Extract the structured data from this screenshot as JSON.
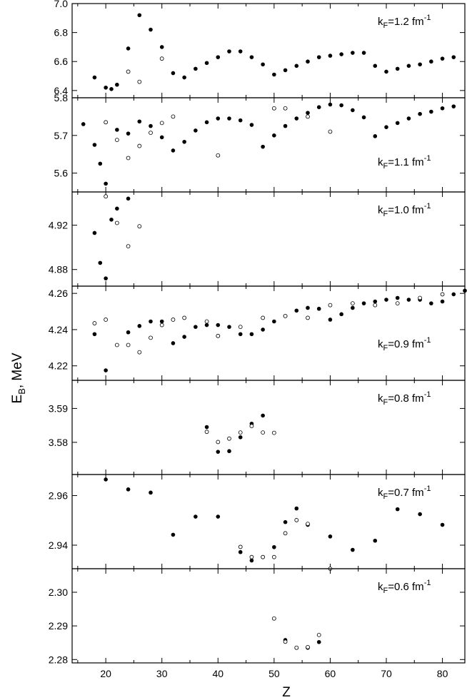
{
  "figure": {
    "ylabel": "E_B, MeV",
    "ylabel_main": "E",
    "ylabel_sub": "B",
    "ylabel_rest": ", MeV",
    "xlabel": "Z",
    "xlim": [
      14,
      84
    ],
    "xticks": [
      20,
      30,
      40,
      50,
      60,
      70,
      80
    ]
  },
  "chart_data": [
    {
      "type": "scatter",
      "label": "k_F=1.2 fm^-1",
      "label_parts": {
        "k": "k",
        "sub": "F",
        "mid": "=1.2 fm",
        "sup": "-1"
      },
      "xlabel": "Z",
      "ylabel": "E_B, MeV",
      "ylim": [
        6.35,
        7.0
      ],
      "yticks": [
        6.4,
        6.6,
        6.8,
        7.0
      ],
      "yticklabels": [
        "6.4",
        "6.6",
        "6.8",
        "7.0"
      ],
      "series": [
        {
          "marker": "filled",
          "x": [
            18,
            20,
            21,
            22,
            24,
            26,
            28,
            30,
            32,
            34,
            36,
            38,
            40,
            42,
            44,
            46,
            48,
            50,
            52,
            54,
            56,
            58,
            60,
            62,
            64,
            66,
            68,
            70,
            72,
            74,
            76,
            78,
            80,
            82
          ],
          "y": [
            6.49,
            6.42,
            6.41,
            6.44,
            6.69,
            6.92,
            6.82,
            6.7,
            6.52,
            6.49,
            6.55,
            6.59,
            6.63,
            6.67,
            6.67,
            6.63,
            6.58,
            6.51,
            6.54,
            6.57,
            6.6,
            6.63,
            6.64,
            6.65,
            6.66,
            6.66,
            6.57,
            6.53,
            6.55,
            6.57,
            6.58,
            6.6,
            6.62,
            6.63
          ]
        },
        {
          "marker": "open",
          "x": [
            24,
            26,
            30
          ],
          "y": [
            6.53,
            6.46,
            6.62
          ]
        }
      ]
    },
    {
      "type": "scatter",
      "label": "k_F=1.1 fm^-1",
      "label_parts": {
        "k": "k",
        "sub": "F",
        "mid": "=1.1 fm",
        "sup": "-1"
      },
      "xlabel": "Z",
      "ylabel": "E_B, MeV",
      "ylim": [
        5.55,
        5.8
      ],
      "yticks": [
        5.6,
        5.7,
        5.8
      ],
      "yticklabels": [
        "5.6",
        "5.7",
        "5.8"
      ],
      "series": [
        {
          "marker": "filled",
          "x": [
            16,
            18,
            19,
            20,
            22,
            24,
            26,
            28,
            30,
            32,
            34,
            36,
            38,
            40,
            42,
            44,
            46,
            48,
            50,
            52,
            54,
            56,
            58,
            60,
            62,
            64,
            66,
            68,
            70,
            72,
            74,
            76,
            78,
            80,
            82
          ],
          "y": [
            5.73,
            5.675,
            5.625,
            5.572,
            5.715,
            5.705,
            5.737,
            5.725,
            5.695,
            5.66,
            5.683,
            5.713,
            5.735,
            5.745,
            5.745,
            5.74,
            5.728,
            5.67,
            5.7,
            5.725,
            5.745,
            5.76,
            5.775,
            5.782,
            5.78,
            5.767,
            5.748,
            5.698,
            5.722,
            5.733,
            5.745,
            5.757,
            5.763,
            5.772,
            5.777
          ]
        },
        {
          "marker": "open",
          "x": [
            20,
            22,
            24,
            26,
            28,
            30,
            32,
            40,
            50,
            52,
            56,
            60
          ],
          "y": [
            5.735,
            5.688,
            5.64,
            5.672,
            5.707,
            5.733,
            5.75,
            5.647,
            5.772,
            5.772,
            5.75,
            5.71
          ]
        }
      ]
    },
    {
      "type": "scatter",
      "label": "k_F=1.0 fm^-1",
      "label_parts": {
        "k": "k",
        "sub": "F",
        "mid": "=1.0 fm",
        "sup": "-1"
      },
      "xlabel": "Z",
      "ylabel": "E_B, MeV",
      "ylim": [
        4.865,
        4.95
      ],
      "yticks": [
        4.88,
        4.92
      ],
      "yticklabels": [
        "4.88",
        "4.92"
      ],
      "series": [
        {
          "marker": "filled",
          "x": [
            18,
            19,
            20,
            21,
            22,
            24
          ],
          "y": [
            4.913,
            4.886,
            4.872,
            4.925,
            4.935,
            4.944
          ]
        },
        {
          "marker": "open",
          "x": [
            20,
            22,
            24,
            26
          ],
          "y": [
            4.946,
            4.922,
            4.901,
            4.919
          ]
        }
      ]
    },
    {
      "type": "scatter",
      "label": "k_F=0.9 fm^-1",
      "label_parts": {
        "k": "k",
        "sub": "F",
        "mid": "=0.9 fm",
        "sup": "-1"
      },
      "xlabel": "Z",
      "ylabel": "E_B, MeV",
      "ylim": [
        4.212,
        4.264
      ],
      "yticks": [
        4.22,
        4.24,
        4.26
      ],
      "yticklabels": [
        "4.22",
        "4.24",
        "4.26"
      ],
      "series": [
        {
          "marker": "filled",
          "x": [
            18,
            20,
            24,
            26,
            28,
            30,
            32,
            34,
            36,
            38,
            40,
            42,
            44,
            46,
            48,
            50,
            52,
            54,
            56,
            58,
            60,
            62,
            64,
            66,
            68,
            70,
            72,
            74,
            76,
            78,
            80,
            82,
            84
          ],
          "y": [
            4.2375,
            4.2175,
            4.2385,
            4.242,
            4.2445,
            4.2445,
            4.2325,
            4.236,
            4.2415,
            4.2425,
            4.2425,
            4.2415,
            4.2375,
            4.2375,
            4.24,
            4.2445,
            4.2475,
            4.2505,
            4.252,
            4.2515,
            4.2455,
            4.2485,
            4.252,
            4.2545,
            4.2555,
            4.2565,
            4.2575,
            4.2565,
            4.2565,
            4.2545,
            4.2555,
            4.2595,
            4.2615
          ]
        },
        {
          "marker": "open",
          "x": [
            18,
            20,
            22,
            24,
            26,
            28,
            30,
            32,
            34,
            38,
            40,
            44,
            48,
            52,
            56,
            60,
            64,
            68,
            72,
            76,
            80
          ],
          "y": [
            4.2435,
            4.2455,
            4.2315,
            4.2315,
            4.2275,
            4.2355,
            4.2425,
            4.2455,
            4.2465,
            4.2445,
            4.2365,
            4.2415,
            4.2465,
            4.2475,
            4.2465,
            4.2535,
            4.2545,
            4.2535,
            4.2545,
            4.2575,
            4.2595
          ]
        }
      ]
    },
    {
      "type": "scatter",
      "label": "k_F=0.8 fm^-1",
      "label_parts": {
        "k": "k",
        "sub": "F",
        "mid": "=0.8 fm",
        "sup": "-1"
      },
      "xlabel": "Z",
      "ylabel": "E_B, MeV",
      "ylim": [
        3.5705,
        3.5983
      ],
      "yticks": [
        3.58,
        3.59
      ],
      "yticklabels": [
        "3.58",
        "3.59"
      ],
      "series": [
        {
          "marker": "filled",
          "x": [
            38,
            40,
            42,
            44,
            46,
            48
          ],
          "y": [
            3.5845,
            3.5772,
            3.5774,
            3.5815,
            3.5855,
            3.5879
          ]
        },
        {
          "marker": "open",
          "x": [
            38,
            40,
            42,
            44,
            46,
            48,
            50
          ],
          "y": [
            3.5831,
            3.5801,
            3.5811,
            3.5829,
            3.5848,
            3.5829,
            3.5828
          ]
        }
      ]
    },
    {
      "type": "scatter",
      "label": "k_F=0.7 fm^-1",
      "label_parts": {
        "k": "k",
        "sub": "F",
        "mid": "=0.7 fm",
        "sup": "-1"
      },
      "xlabel": "Z",
      "ylabel": "E_B, MeV",
      "ylim": [
        2.9305,
        2.9685
      ],
      "yticks": [
        2.94,
        2.96
      ],
      "yticklabels": [
        "2.94",
        "2.96"
      ],
      "series": [
        {
          "marker": "filled",
          "x": [
            20,
            24,
            28,
            32,
            36,
            40,
            44,
            46,
            48,
            50,
            52,
            54,
            56,
            60,
            64,
            68,
            72,
            76,
            80
          ],
          "y": [
            2.9665,
            2.9625,
            2.9612,
            2.9442,
            2.9515,
            2.9515,
            2.9372,
            2.9338,
            2.9352,
            2.9392,
            2.9493,
            2.9548,
            2.9482,
            2.9435,
            2.9381,
            2.9418,
            2.9545,
            2.9525,
            2.9482
          ]
        },
        {
          "marker": "open",
          "x": [
            44,
            46,
            48,
            50,
            52,
            54,
            56,
            60
          ],
          "y": [
            2.9393,
            2.9352,
            2.9352,
            2.9352,
            2.9448,
            2.9501,
            2.9486,
            2.9305
          ]
        }
      ]
    },
    {
      "type": "scatter",
      "label": "k_F=0.6 fm^-1",
      "label_parts": {
        "k": "k",
        "sub": "F",
        "mid": "=0.6 fm",
        "sup": "-1"
      },
      "xlabel": "Z",
      "ylabel": "E_B, MeV",
      "ylim": [
        2.279,
        2.307
      ],
      "yticks": [
        2.28,
        2.29,
        2.3
      ],
      "yticklabels": [
        "2.28",
        "2.29",
        "2.30"
      ],
      "series": [
        {
          "marker": "filled",
          "x": [
            52,
            54,
            56,
            58
          ],
          "y": [
            2.2858,
            2.2835,
            2.2835,
            2.2852
          ]
        },
        {
          "marker": "open",
          "x": [
            50,
            52,
            54,
            56,
            58
          ],
          "y": [
            2.2922,
            2.2853,
            2.2835,
            2.2837,
            2.2873
          ]
        }
      ]
    }
  ]
}
